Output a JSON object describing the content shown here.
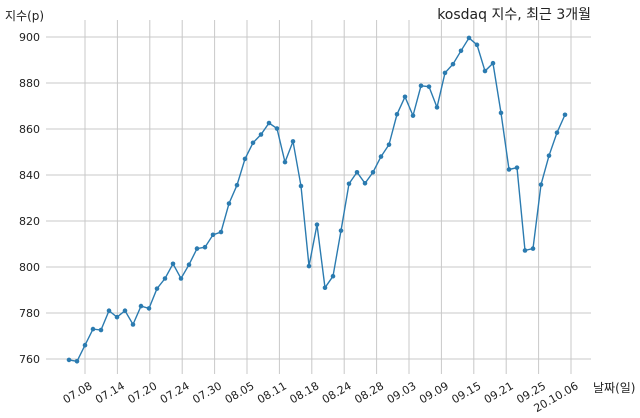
{
  "chart_data": {
    "type": "line",
    "title": "kosdaq 지수, 최근 3개월",
    "ylabel": "지수(p)",
    "xlabel": "날짜(일)",
    "ylim": [
      755,
      906
    ],
    "yticks": [
      760,
      780,
      800,
      820,
      840,
      860,
      880,
      900
    ],
    "xticks": [
      "07.08",
      "07.14",
      "07.20",
      "07.24",
      "07.30",
      "08.05",
      "08.11",
      "08.18",
      "08.24",
      "08.28",
      "09.03",
      "09.09",
      "09.15",
      "09.21",
      "09.25",
      "20.10.06"
    ],
    "grid": true,
    "series": [
      {
        "values": [
          759.6,
          759.0,
          766.0,
          773.0,
          772.6,
          781.0,
          778.2,
          781.0,
          775.0,
          783.0,
          782.0,
          790.6,
          795.0,
          801.4,
          795.0,
          801.0,
          808.0,
          808.6,
          814.0,
          815.2,
          827.6,
          835.6,
          847.0,
          854.0,
          857.6,
          862.6,
          860.2,
          845.6,
          854.6,
          835.2,
          800.4,
          818.4,
          791.0,
          796.0,
          815.8,
          836.2,
          841.2,
          836.4,
          841.2,
          848.0,
          853.2,
          866.4,
          874.0,
          865.8,
          878.8,
          878.4,
          869.4,
          884.4,
          888.2,
          894.0,
          899.6,
          896.6,
          885.2,
          888.6,
          867.0,
          842.4,
          843.2,
          807.2,
          808.0,
          835.8,
          848.4,
          858.4,
          866.2
        ]
      }
    ]
  }
}
